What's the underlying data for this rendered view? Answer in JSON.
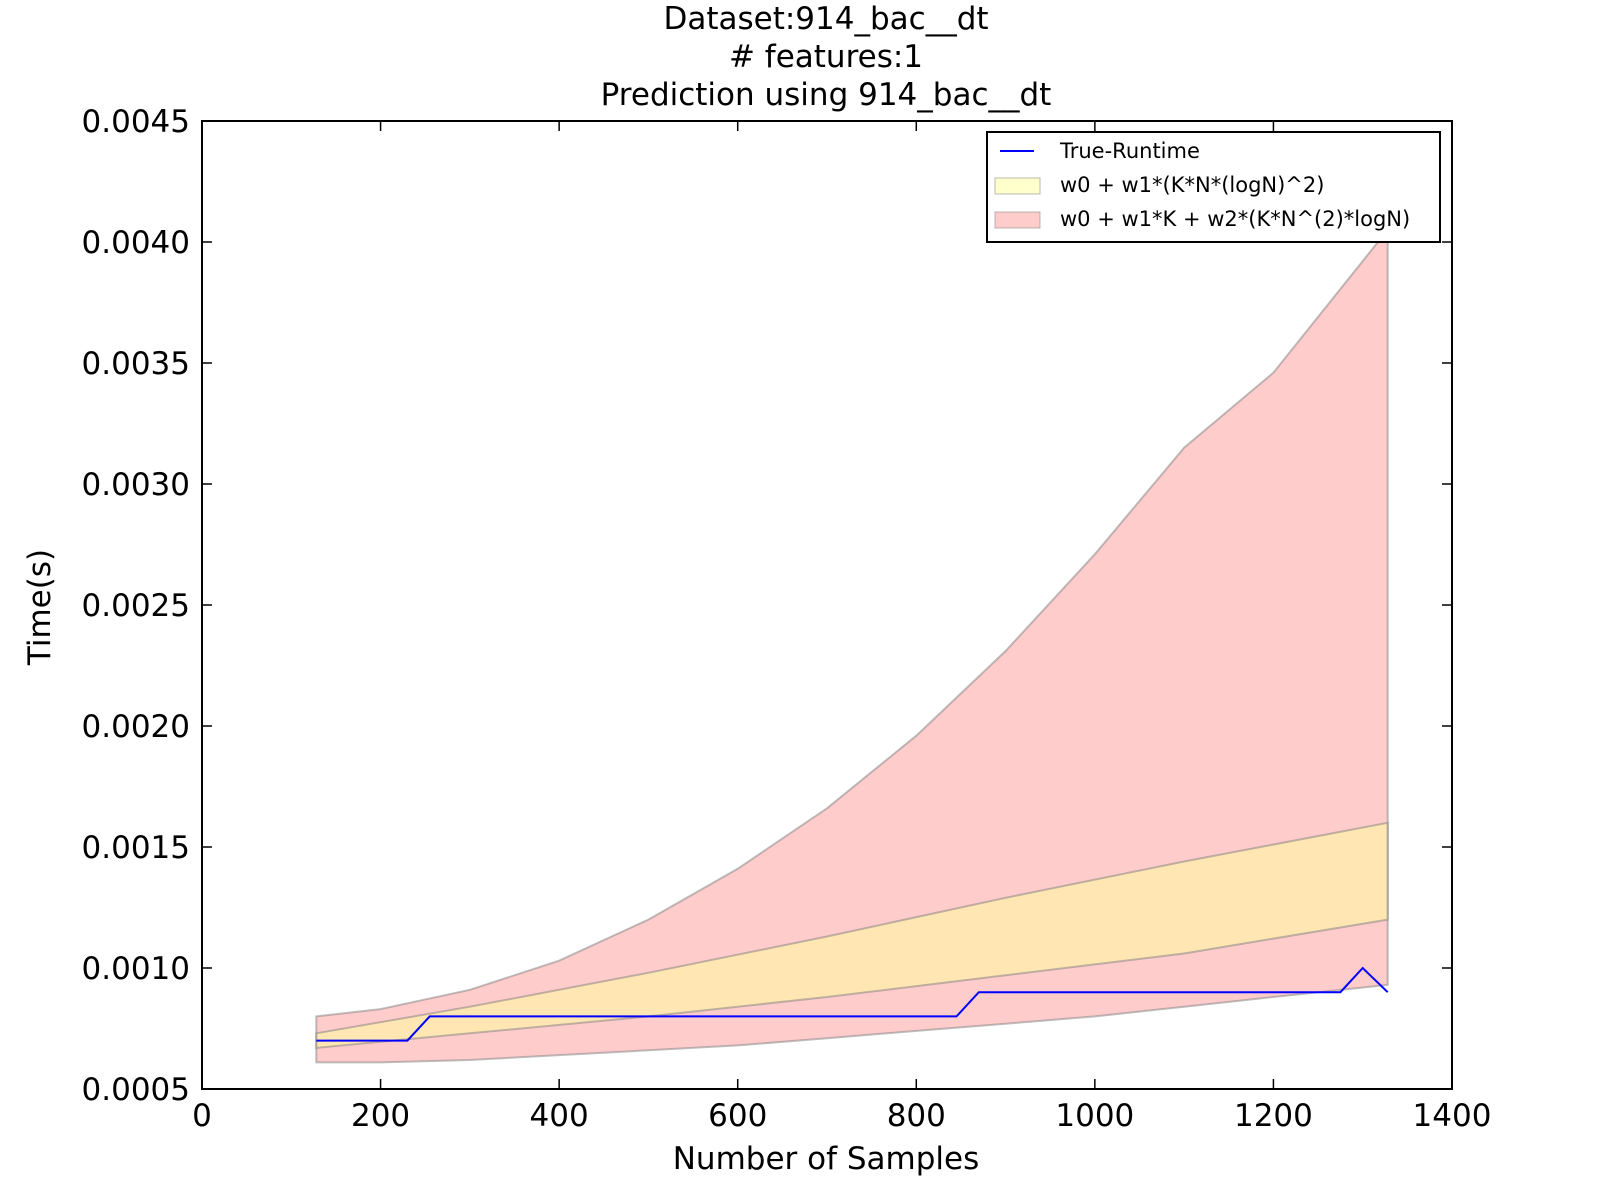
{
  "chart_data": {
    "type": "area",
    "title_lines": [
      "Dataset:914_bac__dt",
      "# features:1",
      "Prediction using 914_bac__dt"
    ],
    "xlabel": "Number of Samples",
    "ylabel": "Time(s)",
    "xlim": [
      0,
      1400
    ],
    "ylim": [
      0.0005,
      0.0045
    ],
    "x_ticks": [
      0,
      200,
      400,
      600,
      800,
      1000,
      1200,
      1400
    ],
    "x_tick_labels": [
      "0",
      "200",
      "400",
      "600",
      "800",
      "1000",
      "1200",
      "1400"
    ],
    "y_ticks": [
      0.0005,
      0.001,
      0.0015,
      0.002,
      0.0025,
      0.003,
      0.0035,
      0.004,
      0.0045
    ],
    "y_tick_labels": [
      "0.0005",
      "0.0010",
      "0.0015",
      "0.0020",
      "0.0025",
      "0.0030",
      "0.0035",
      "0.0040",
      "0.0045"
    ],
    "grid": false,
    "legend_position": "top-right",
    "series": [
      {
        "name": "True-Runtime",
        "kind": "line",
        "color": "#0000ff",
        "x": [
          128,
          230,
          255,
          500,
          845,
          870,
          1275,
          1300,
          1328
        ],
        "y": [
          0.0007,
          0.0007,
          0.0008,
          0.0008,
          0.0008,
          0.0009,
          0.0009,
          0.001,
          0.0009
        ]
      },
      {
        "name": "w0 + w1*(K*N*(logN)^2)",
        "kind": "band",
        "color": "#ffff99",
        "x": [
          128,
          300,
          500,
          700,
          900,
          1100,
          1328
        ],
        "lower": [
          0.00067,
          0.00073,
          0.0008,
          0.00088,
          0.00097,
          0.00106,
          0.0012
        ],
        "upper": [
          0.00073,
          0.00084,
          0.00098,
          0.00113,
          0.00129,
          0.00144,
          0.0016
        ]
      },
      {
        "name": "w0 + w1*K + w2*(K*N^(2)*logN)",
        "kind": "band",
        "color": "#ff9999",
        "x": [
          128,
          200,
          300,
          400,
          500,
          600,
          700,
          800,
          900,
          1000,
          1100,
          1200,
          1328
        ],
        "lower": [
          0.00061,
          0.00061,
          0.00062,
          0.00064,
          0.00066,
          0.00068,
          0.00071,
          0.00074,
          0.00077,
          0.0008,
          0.00084,
          0.00088,
          0.00093
        ],
        "upper": [
          0.0008,
          0.00083,
          0.00091,
          0.00103,
          0.0012,
          0.00141,
          0.00166,
          0.00196,
          0.00231,
          0.00271,
          0.00315,
          0.00346,
          0.00405
        ]
      }
    ]
  }
}
